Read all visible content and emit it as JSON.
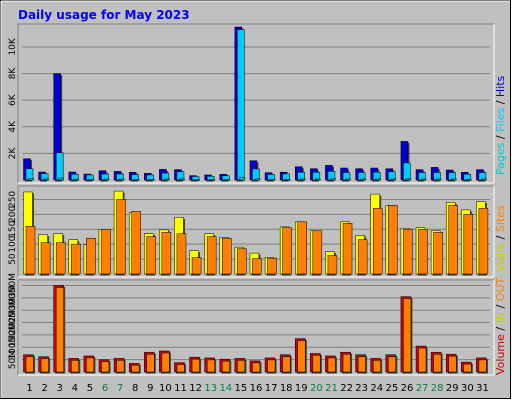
{
  "colors": {
    "frame_bg": "#c0c0c0",
    "plot_bg": "#c0c0c0",
    "title": "#0000ff",
    "grid": "#808080",
    "hits": "#0000cc",
    "files": "#00ccff",
    "pages": "#00cccc",
    "visits": "#ffff00",
    "sites": "#ff8000",
    "volume": "#cc0000",
    "weekend": "#008040",
    "weekday": "#000000"
  },
  "chart_data": {
    "type": "bar",
    "title": "Daily usage for May 2023",
    "days": [
      "1",
      "2",
      "3",
      "4",
      "5",
      "6",
      "7",
      "8",
      "9",
      "10",
      "11",
      "12",
      "13",
      "14",
      "15",
      "16",
      "17",
      "18",
      "19",
      "20",
      "21",
      "22",
      "23",
      "24",
      "25",
      "26",
      "27",
      "28",
      "29",
      "30",
      "31"
    ],
    "weekend_days": [
      6,
      7,
      13,
      14,
      20,
      21,
      27,
      28
    ],
    "panels": [
      {
        "id": "hits",
        "ylim": [
          0,
          11500
        ],
        "ticks": [
          "2K",
          "4K",
          "6K",
          "8K",
          "10K"
        ],
        "tick_values": [
          2000,
          4000,
          6000,
          8000,
          10000
        ],
        "legend": {
          "pages": "Pages",
          "files": "Files",
          "hits": "Hits",
          "sep1": " / ",
          "sep2": " / "
        },
        "series": [
          {
            "key": "hits",
            "values": [
              1600,
              600,
              8000,
              600,
              450,
              700,
              650,
              580,
              500,
              800,
              780,
              330,
              380,
              430,
              11500,
              1450,
              550,
              590,
              1000,
              850,
              1100,
              900,
              850,
              900,
              850,
              2900,
              780,
              950,
              750,
              580,
              780
            ]
          },
          {
            "key": "files",
            "values": [
              850,
              480,
              2050,
              430,
              380,
              450,
              450,
              400,
              380,
              520,
              620,
              260,
              280,
              330,
              11300,
              830,
              420,
              460,
              580,
              580,
              650,
              560,
              560,
              580,
              620,
              1280,
              560,
              560,
              560,
              430,
              560
            ]
          },
          {
            "key": "pages",
            "values": [
              100,
              80,
              150,
              70,
              60,
              70,
              70,
              60,
              60,
              80,
              80,
              40,
              50,
              50,
              200,
              100,
              60,
              60,
              80,
              80,
              90,
              80,
              80,
              80,
              80,
              120,
              80,
              80,
              80,
              60,
              80
            ]
          }
        ]
      },
      {
        "id": "visits",
        "ylim": [
          0,
          285
        ],
        "ticks": [
          "50",
          "100",
          "150",
          "200",
          "250"
        ],
        "tick_values": [
          50,
          100,
          150,
          200,
          250
        ],
        "legend": {
          "visits": "Visits",
          "sites": "Sites",
          "sep1": " / "
        },
        "series": [
          {
            "key": "visits",
            "values": [
              275,
              132,
              135,
              115,
              98,
              150,
              278,
              205,
              135,
              148,
              190,
              78,
              135,
              122,
              90,
              70,
              56,
              158,
              175,
              145,
              75,
              175,
              130,
              268,
              230,
              153,
              155,
              145,
              240,
              215,
              243
            ]
          },
          {
            "key": "sites",
            "values": [
              160,
              105,
              105,
              100,
              120,
              150,
              250,
              210,
              125,
              140,
              135,
              55,
              125,
              120,
              85,
              52,
              53,
              155,
              175,
              145,
              62,
              170,
              115,
              220,
              230,
              150,
              150,
              140,
              230,
              200,
              220
            ]
          }
        ]
      },
      {
        "id": "volume",
        "ylim": [
          0,
          360
        ],
        "ticks": [
          "50M",
          "100M",
          "150M",
          "200M",
          "250M",
          "300M",
          "350M"
        ],
        "tick_values": [
          50,
          100,
          150,
          200,
          250,
          300,
          350
        ],
        "legend": {
          "volume": "Volume",
          "in": "IN",
          "out": "OUT",
          "sep1": " / ",
          "sep2": " / "
        },
        "series": [
          {
            "key": "volume",
            "values": [
              70,
              62,
              350,
              55,
              65,
              50,
              55,
              35,
              80,
              85,
              38,
              60,
              57,
              52,
              55,
              45,
              57,
              70,
              135,
              75,
              65,
              80,
              70,
              55,
              70,
              305,
              105,
              80,
              72,
              40,
              57
            ]
          }
        ]
      }
    ]
  }
}
